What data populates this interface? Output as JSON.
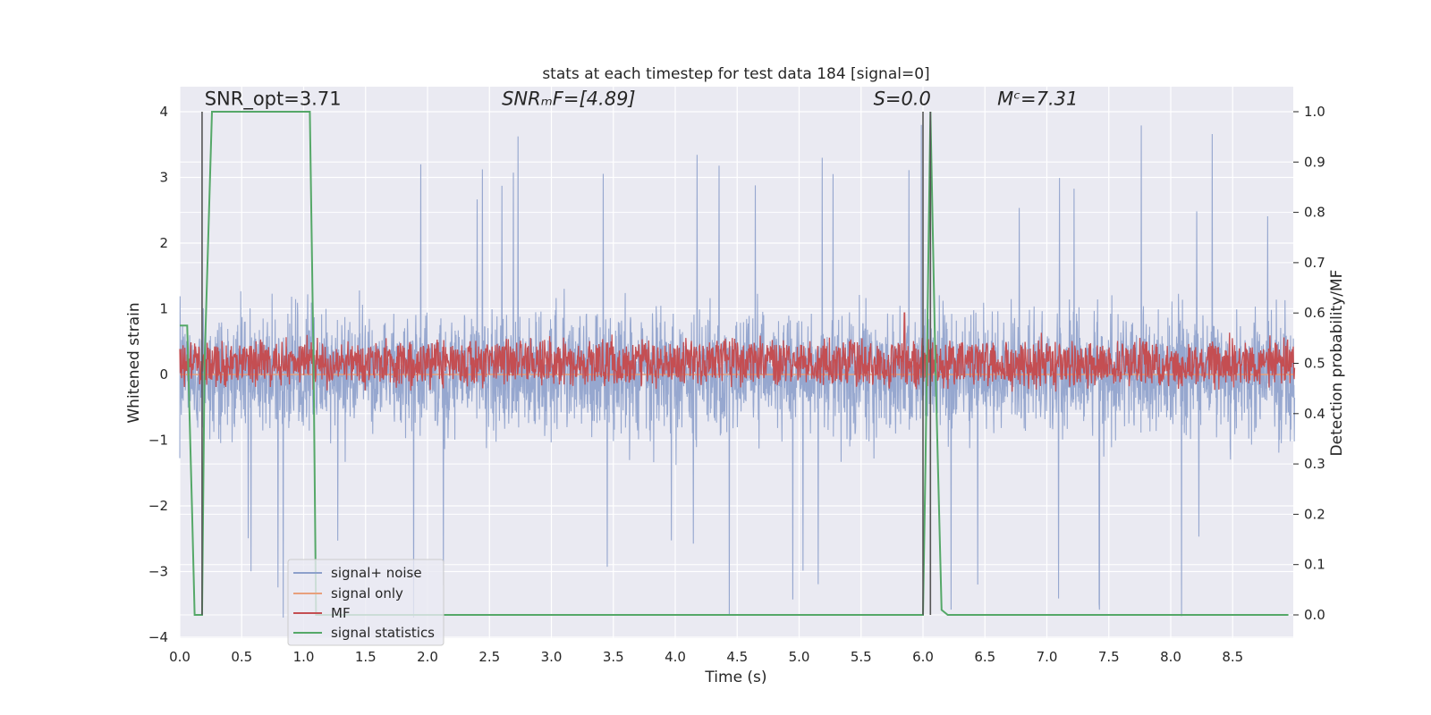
{
  "chart_data": {
    "type": "line",
    "title": "stats at each timestep for test data 184 [signal=0]",
    "xlabel": "Time (s)",
    "ylabel": "Whitened strain",
    "ylabel_right": "Detection probability/MF",
    "xlim": [
      0.0,
      9.0
    ],
    "ylim": [
      -4.2,
      4.4
    ],
    "ylim_right": [
      -0.04,
      1.04
    ],
    "x_ticks": [
      0.0,
      0.5,
      1.0,
      1.5,
      2.0,
      2.5,
      3.0,
      3.5,
      4.0,
      4.5,
      5.0,
      5.5,
      6.0,
      6.5,
      7.0,
      7.5,
      8.0,
      8.5
    ],
    "x_tick_labels": [
      "0.0",
      "0.5",
      "1.0",
      "1.5",
      "2.0",
      "2.5",
      "3.0",
      "3.5",
      "4.0",
      "4.5",
      "5.0",
      "5.5",
      "6.0",
      "6.5",
      "7.0",
      "7.5",
      "8.0",
      "8.5"
    ],
    "y_ticks": [
      4,
      3,
      2,
      1,
      0,
      -1,
      -2,
      -3,
      -4
    ],
    "y_tick_labels": [
      "4",
      "3",
      "2",
      "1",
      "0",
      "−1",
      "−2",
      "−3",
      "−4"
    ],
    "y_right_ticks": [
      1.0,
      0.9,
      0.8,
      0.7,
      0.6,
      0.5,
      0.4,
      0.3,
      0.2,
      0.1,
      0.0
    ],
    "y_right_tick_labels": [
      "1.0",
      "0.9",
      "0.8",
      "0.7",
      "0.6",
      "0.5",
      "0.4",
      "0.3",
      "0.2",
      "0.1",
      "0.0"
    ],
    "grid": true,
    "legend_position": "lower-left",
    "annotations": [
      {
        "text": "SNR_opt=3.71",
        "x": 0.2,
        "y": 4.1,
        "italic": false
      },
      {
        "text": "SNRₘF=[4.89]",
        "x": 2.6,
        "y": 4.1,
        "italic": true
      },
      {
        "text": "S=0.0",
        "x": 5.6,
        "y": 4.1,
        "italic": true
      },
      {
        "text": "Mᶜ=7.31",
        "x": 6.6,
        "y": 4.1,
        "italic": true
      }
    ],
    "vertical_markers": [
      0.18,
      6.0,
      6.06
    ],
    "series": [
      {
        "name": "signal+ noise",
        "color": "#8da0cb",
        "axis": "left",
        "style": "dense-noise",
        "envelope": {
          "upper": 1.7,
          "lower": -1.7,
          "peak_max": 3.95,
          "peak_min": -3.7
        }
      },
      {
        "name": "signal only",
        "color": "#e8a07c",
        "axis": "left",
        "x": [
          0.0,
          9.0
        ],
        "y": [
          0.0,
          0.0
        ]
      },
      {
        "name": "MF",
        "color": "#c44e52",
        "axis": "right",
        "style": "dense-noise",
        "envelope": {
          "base": 0.5,
          "spread": 0.05,
          "spike_x": 5.85,
          "spike_y": 0.6
        }
      },
      {
        "name": "signal statistics",
        "color": "#55a868",
        "axis": "right",
        "x": [
          0.0,
          0.06,
          0.1,
          0.12,
          0.18,
          0.2,
          0.26,
          1.05,
          1.08,
          1.1,
          6.0,
          6.02,
          6.06,
          6.1,
          6.15,
          6.2,
          8.95
        ],
        "y": [
          0.575,
          0.575,
          0.2,
          0.0,
          0.0,
          0.5,
          1.0,
          1.0,
          0.5,
          0.0,
          0.0,
          0.3,
          1.0,
          0.5,
          0.01,
          0.0,
          0.0
        ]
      }
    ]
  }
}
